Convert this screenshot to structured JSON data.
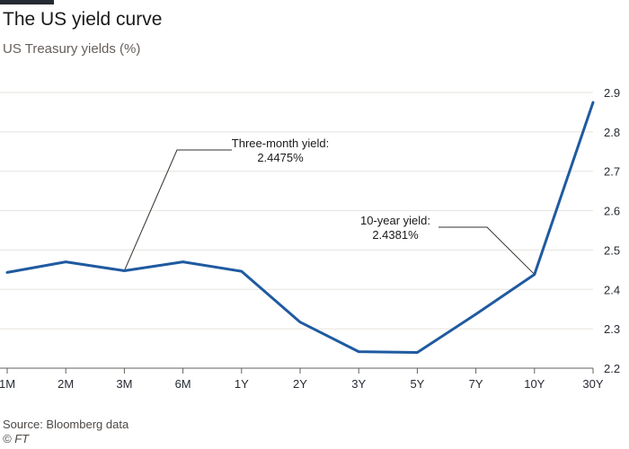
{
  "title": "The US yield curve",
  "subtitle": "US Treasury yields (%)",
  "source": "Source: Bloomberg data",
  "credit": "© FT",
  "colors": {
    "line": "#1f5aa0",
    "grid": "#e6e2de",
    "axis": "#66605c",
    "text": "#262a33"
  },
  "chart_data": {
    "type": "line",
    "categories": [
      "1M",
      "2M",
      "3M",
      "6M",
      "1Y",
      "2Y",
      "3Y",
      "5Y",
      "7Y",
      "10Y",
      "30Y"
    ],
    "series": [
      {
        "values": [
          2.443,
          2.47,
          2.4475,
          2.47,
          2.446,
          2.317,
          2.242,
          2.24,
          2.337,
          2.4381,
          2.875
        ]
      }
    ],
    "ylim": [
      2.2,
      2.9
    ],
    "yticks": [
      "2.2",
      "2.3",
      "2.4",
      "2.5",
      "2.6",
      "2.7",
      "2.8",
      "2.9"
    ],
    "y_axis_side": "right",
    "grid": true,
    "annotations": [
      {
        "category": "3M",
        "lines": [
          "Three-month yield:",
          "2.4475%"
        ]
      },
      {
        "category": "10Y",
        "lines": [
          "10-year yield:",
          "2.4381%"
        ]
      }
    ]
  }
}
